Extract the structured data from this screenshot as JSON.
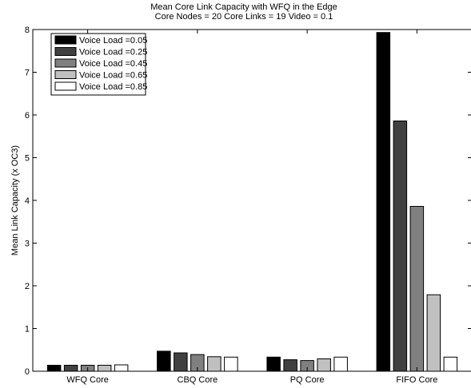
{
  "chart_data": {
    "type": "bar",
    "title": "Mean Core Link Capacity with WFQ in the Edge",
    "subtitle": "Core Nodes = 20 Core Links = 19 Video = 0.1",
    "xlabel": "",
    "ylabel": "Mean Link Capacity (x OC3)",
    "ylim": [
      0,
      8
    ],
    "yticks": [
      0,
      1,
      2,
      3,
      4,
      5,
      6,
      7,
      8
    ],
    "grid": false,
    "legend_position": "top-left",
    "categories": [
      "WFQ Core",
      "CBQ Core",
      "PQ Core",
      "FIFO Core"
    ],
    "series": [
      {
        "name": "Voice Load =0.05",
        "color": "#000000",
        "values": [
          0.14,
          0.47,
          0.33,
          7.93
        ]
      },
      {
        "name": "Voice Load =0.25",
        "color": "#404040",
        "values": [
          0.14,
          0.43,
          0.27,
          5.86
        ]
      },
      {
        "name": "Voice Load =0.45",
        "color": "#808080",
        "values": [
          0.14,
          0.39,
          0.25,
          3.86
        ]
      },
      {
        "name": "Voice Load =0.65",
        "color": "#c0c0c0",
        "values": [
          0.14,
          0.34,
          0.29,
          1.79
        ]
      },
      {
        "name": "Voice Load =0.85",
        "color": "#ffffff",
        "values": [
          0.15,
          0.33,
          0.33,
          0.33
        ]
      }
    ]
  }
}
